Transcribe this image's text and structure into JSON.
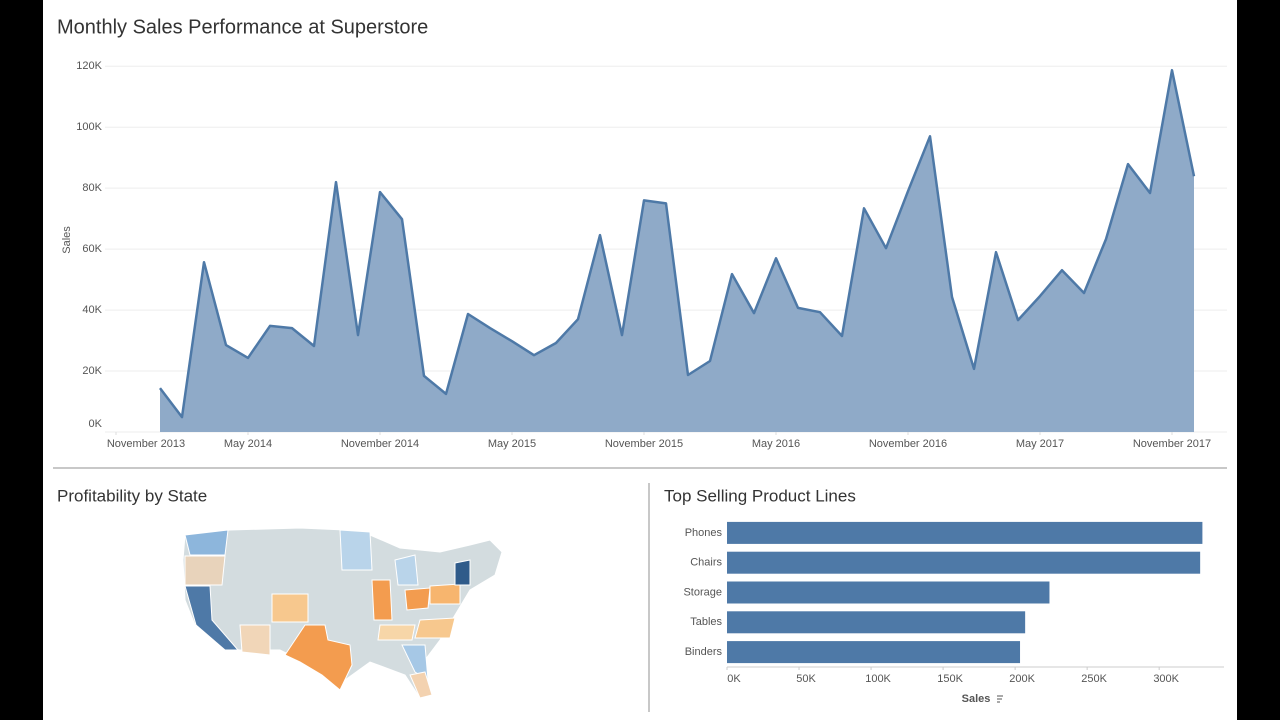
{
  "chart_data": [
    {
      "type": "area",
      "title": "Monthly Sales Performance at Superstore",
      "y_label": "Sales",
      "x": [
        "2014-01",
        "2014-02",
        "2014-03",
        "2014-04",
        "2014-05",
        "2014-06",
        "2014-07",
        "2014-08",
        "2014-09",
        "2014-10",
        "2014-11",
        "2014-12",
        "2015-01",
        "2015-02",
        "2015-03",
        "2015-04",
        "2015-05",
        "2015-06",
        "2015-07",
        "2015-08",
        "2015-09",
        "2015-10",
        "2015-11",
        "2015-12",
        "2016-01",
        "2016-02",
        "2016-03",
        "2016-04",
        "2016-05",
        "2016-06",
        "2016-07",
        "2016-08",
        "2016-09",
        "2016-10",
        "2016-11",
        "2016-12",
        "2017-01",
        "2017-02",
        "2017-03",
        "2017-04",
        "2017-05",
        "2017-06",
        "2017-07",
        "2017-08",
        "2017-09",
        "2017-10",
        "2017-11",
        "2017-12"
      ],
      "values": [
        14400,
        4900,
        55700,
        28500,
        24300,
        34800,
        34100,
        28200,
        82000,
        31800,
        78700,
        69800,
        18400,
        12500,
        38700,
        34100,
        29800,
        25200,
        29200,
        37000,
        64600,
        31800,
        76000,
        75000,
        18700,
        23300,
        51800,
        39000,
        57000,
        40700,
        39300,
        31500,
        73400,
        60300,
        79000,
        97000,
        44300,
        20700,
        59000,
        36700,
        44600,
        53100,
        45600,
        63300,
        87900,
        78400,
        118700,
        83900
      ],
      "color": "#4e79a7",
      "fill_color": "#8faac8",
      "xlim": [
        "2013-11",
        "2018-01"
      ],
      "xticks": [
        {
          "value": "2013-11",
          "label": "November 2013"
        },
        {
          "value": "2014-05",
          "label": "May 2014"
        },
        {
          "value": "2014-11",
          "label": "November 2014"
        },
        {
          "value": "2015-05",
          "label": "May 2015"
        },
        {
          "value": "2015-11",
          "label": "November 2015"
        },
        {
          "value": "2016-05",
          "label": "May 2016"
        },
        {
          "value": "2016-11",
          "label": "November 2016"
        },
        {
          "value": "2017-05",
          "label": "May 2017"
        },
        {
          "value": "2017-11",
          "label": "November 2017"
        }
      ],
      "ylim": [
        0,
        125000
      ],
      "yticks": [
        {
          "value": 0,
          "label": "0K"
        },
        {
          "value": 20000,
          "label": "20K"
        },
        {
          "value": 40000,
          "label": "40K"
        },
        {
          "value": 60000,
          "label": "60K"
        },
        {
          "value": 80000,
          "label": "80K"
        },
        {
          "value": 100000,
          "label": "100K"
        },
        {
          "value": 120000,
          "label": "120K"
        }
      ],
      "grid": true
    },
    {
      "type": "map",
      "title": "Profitability by State"
    },
    {
      "type": "bar",
      "orientation": "horizontal",
      "title": "Top Selling Product Lines",
      "x_label": "Sales",
      "categories": [
        "Phones",
        "Chairs",
        "Storage",
        "Tables",
        "Binders"
      ],
      "values": [
        330007,
        328449,
        223844,
        206966,
        203413
      ],
      "color": "#4e79a7",
      "xlim": [
        0,
        345000
      ],
      "xticks": [
        {
          "value": 0,
          "label": "0K"
        },
        {
          "value": 50000,
          "label": "50K"
        },
        {
          "value": 100000,
          "label": "100K"
        },
        {
          "value": 150000,
          "label": "150K"
        },
        {
          "value": 200000,
          "label": "200K"
        },
        {
          "value": 250000,
          "label": "250K"
        },
        {
          "value": 300000,
          "label": "300K"
        }
      ]
    }
  ]
}
